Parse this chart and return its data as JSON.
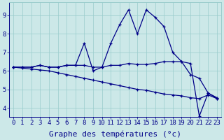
{
  "xlabel": "Graphe des températures (°c)",
  "background_color": "#cce8e8",
  "grid_color": "#99cccc",
  "line_color": "#000088",
  "xlim": [
    -0.5,
    23.5
  ],
  "ylim": [
    3.5,
    9.7
  ],
  "xticks": [
    0,
    1,
    2,
    3,
    4,
    5,
    6,
    7,
    8,
    9,
    10,
    11,
    12,
    13,
    14,
    15,
    16,
    17,
    18,
    19,
    20,
    21,
    22,
    23
  ],
  "yticks": [
    4,
    5,
    6,
    7,
    8,
    9
  ],
  "series1": [
    6.2,
    6.2,
    6.2,
    6.3,
    6.2,
    6.2,
    6.3,
    6.3,
    7.5,
    6.0,
    6.2,
    7.5,
    8.5,
    9.3,
    8.0,
    9.3,
    8.9,
    8.4,
    7.0,
    6.5,
    5.8,
    5.6,
    4.8,
    4.5
  ],
  "series2": [
    6.2,
    6.2,
    6.2,
    6.3,
    6.2,
    6.2,
    6.3,
    6.3,
    6.3,
    6.2,
    6.2,
    6.3,
    6.3,
    6.4,
    6.35,
    6.35,
    6.4,
    6.5,
    6.5,
    6.5,
    6.4,
    3.55,
    4.8,
    4.55
  ],
  "series3": [
    6.2,
    6.15,
    6.1,
    6.05,
    6.0,
    5.9,
    5.8,
    5.7,
    5.6,
    5.5,
    5.4,
    5.3,
    5.2,
    5.1,
    5.0,
    4.95,
    4.85,
    4.75,
    4.7,
    4.65,
    4.55,
    4.5,
    4.7,
    4.5
  ],
  "xlabel_fontsize": 8,
  "tick_fontsize": 6.5,
  "figwidth": 3.2,
  "figheight": 2.0,
  "dpi": 100
}
